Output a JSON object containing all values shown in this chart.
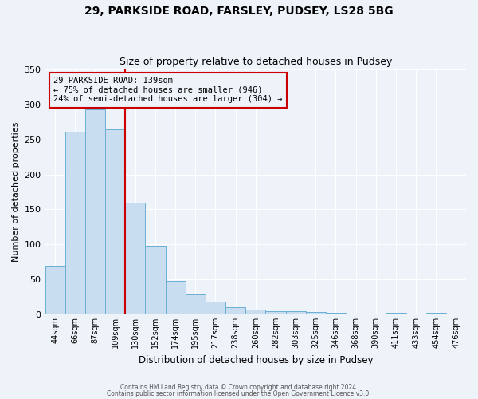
{
  "title": "29, PARKSIDE ROAD, FARSLEY, PUDSEY, LS28 5BG",
  "subtitle": "Size of property relative to detached houses in Pudsey",
  "xlabel": "Distribution of detached houses by size in Pudsey",
  "ylabel": "Number of detached properties",
  "bar_labels": [
    "44sqm",
    "66sqm",
    "87sqm",
    "109sqm",
    "130sqm",
    "152sqm",
    "174sqm",
    "195sqm",
    "217sqm",
    "238sqm",
    "260sqm",
    "282sqm",
    "303sqm",
    "325sqm",
    "346sqm",
    "368sqm",
    "390sqm",
    "411sqm",
    "433sqm",
    "454sqm",
    "476sqm"
  ],
  "bar_values": [
    70,
    261,
    293,
    265,
    160,
    98,
    48,
    29,
    18,
    10,
    7,
    5,
    5,
    3,
    2,
    0,
    0,
    2,
    1,
    2,
    1
  ],
  "bar_color": "#c8ddf0",
  "bar_edge_color": "#6aafd6",
  "ylim": [
    0,
    350
  ],
  "yticks": [
    0,
    50,
    100,
    150,
    200,
    250,
    300,
    350
  ],
  "vline_color": "#cc0000",
  "annotation_title": "29 PARKSIDE ROAD: 139sqm",
  "annotation_line1": "← 75% of detached houses are smaller (946)",
  "annotation_line2": "24% of semi-detached houses are larger (304) →",
  "annotation_box_color": "#cc0000",
  "footer_line1": "Contains HM Land Registry data © Crown copyright and database right 2024.",
  "footer_line2": "Contains public sector information licensed under the Open Government Licence v3.0.",
  "background_color": "#eef2f9"
}
